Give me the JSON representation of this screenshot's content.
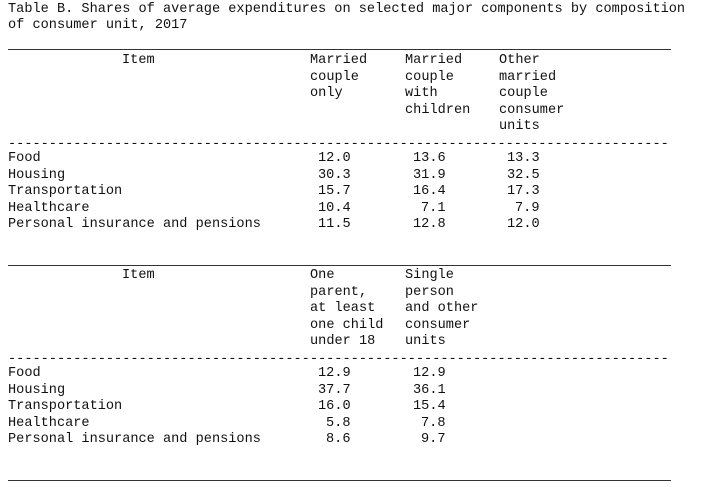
{
  "title": {
    "line1": "Table B. Shares of average expenditures on selected major components by composition",
    "line2": "of consumer unit, 2017"
  },
  "table1": {
    "header": {
      "item": "Item",
      "col1": [
        "Married",
        "couple",
        "only"
      ],
      "col2": [
        "Married",
        "couple",
        "with",
        "children"
      ],
      "col3": [
        "Other",
        "married",
        "couple",
        "consumer",
        "units"
      ]
    },
    "rows": [
      {
        "label": "Food",
        "v1": "12.0",
        "v2": "13.6",
        "v3": "13.3"
      },
      {
        "label": "Housing",
        "v1": "30.3",
        "v2": "31.9",
        "v3": "32.5"
      },
      {
        "label": "Transportation",
        "v1": "15.7",
        "v2": "16.4",
        "v3": "17.3"
      },
      {
        "label": "Healthcare",
        "v1": "10.4",
        "v2": "7.1",
        "v3": "7.9"
      },
      {
        "label": "Personal insurance and pensions",
        "v1": "11.5",
        "v2": "12.8",
        "v3": "12.0"
      }
    ]
  },
  "table2": {
    "header": {
      "item": "Item",
      "col1": [
        "One",
        "parent,",
        "at least",
        "one child",
        "under 18"
      ],
      "col2": [
        "Single",
        "person",
        "and other",
        "consumer",
        "units"
      ]
    },
    "rows": [
      {
        "label": "Food",
        "v1": "12.9",
        "v2": "12.9"
      },
      {
        "label": "Housing",
        "v1": "37.7",
        "v2": "36.1"
      },
      {
        "label": "Transportation",
        "v1": "16.0",
        "v2": "15.4"
      },
      {
        "label": "Healthcare",
        "v1": "5.8",
        "v2": "7.8"
      },
      {
        "label": "Personal insurance and pensions",
        "v1": "8.6",
        "v2": "9.7"
      }
    ]
  }
}
